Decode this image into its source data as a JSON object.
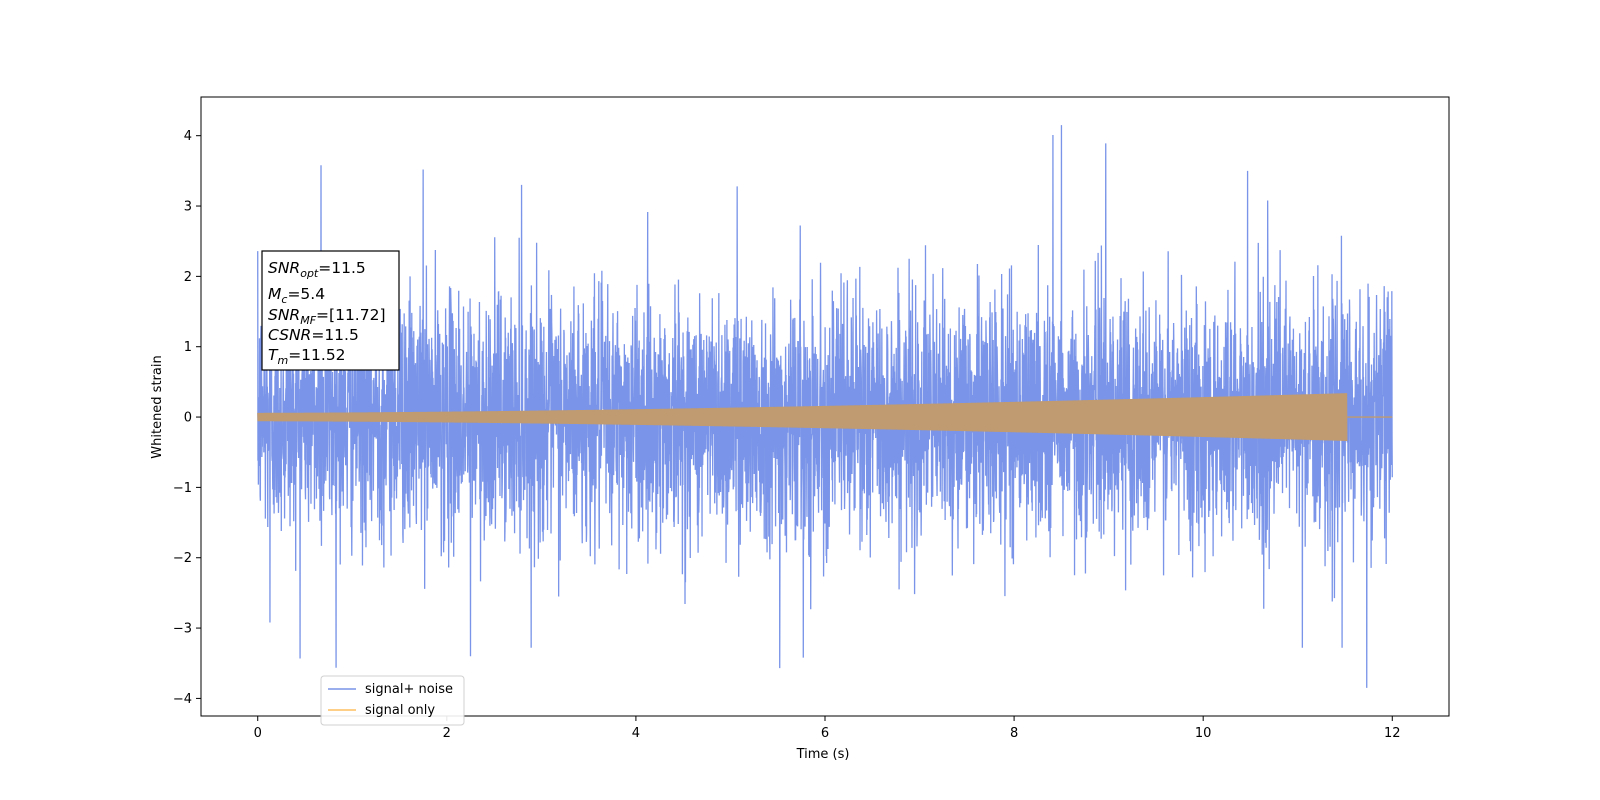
{
  "chart_data": {
    "type": "line",
    "xlabel": "Time (s)",
    "ylabel": "Whitened strain",
    "xlim": [
      -0.6,
      12.6
    ],
    "ylim": [
      -4.25,
      4.55
    ],
    "x_ticks": [
      0,
      2,
      4,
      6,
      8,
      10,
      12
    ],
    "x_tick_labels": [
      "0",
      "2",
      "4",
      "6",
      "8",
      "10",
      "12"
    ],
    "y_ticks": [
      4,
      3,
      2,
      1,
      0,
      -1,
      -2,
      -3,
      -4
    ],
    "y_tick_labels": [
      "4",
      "3",
      "2",
      "1",
      "0",
      "−1",
      "−2",
      "−3",
      "−4"
    ],
    "grid": false,
    "legend_position": "lower-left",
    "series": [
      {
        "name": "signal+ noise",
        "color": "#7994e8",
        "t_start": 0,
        "t_end": 12,
        "noise_std": 0.85,
        "y_min": -3.85,
        "y_max": 4.15,
        "peaks": [
          [
            0.13,
            -2.92
          ],
          [
            0.67,
            3.58
          ],
          [
            1.75,
            3.52
          ],
          [
            2.25,
            -3.4
          ],
          [
            2.79,
            3.3
          ],
          [
            5.07,
            3.28
          ],
          [
            5.52,
            -3.57
          ],
          [
            5.77,
            -3.42
          ],
          [
            8.41,
            4.01
          ],
          [
            8.5,
            4.15
          ],
          [
            8.97,
            3.89
          ],
          [
            10.47,
            3.5
          ],
          [
            11.05,
            -3.28
          ],
          [
            11.47,
            -3.28
          ],
          [
            11.73,
            -3.85
          ]
        ]
      },
      {
        "name": "signal only",
        "color": "#fdbf5e",
        "t_start": 0,
        "t_end": 12,
        "t_merger": 11.52,
        "amplitude_start": 0.06,
        "amplitude_end": 0.34
      }
    ]
  },
  "annotation": {
    "snr_opt": {
      "label": "SNR",
      "sub": "opt",
      "value": "=11.5"
    },
    "mc": {
      "label": "M",
      "sub": "c",
      "value": "=5.4"
    },
    "snr_mf": {
      "label": "SNR",
      "sub": "MF",
      "value": "=[11.72]"
    },
    "csnr": {
      "label": "CSNR",
      "value": "=11.5"
    },
    "tm": {
      "label": "T",
      "sub": "m",
      "value": "=11.52"
    }
  }
}
